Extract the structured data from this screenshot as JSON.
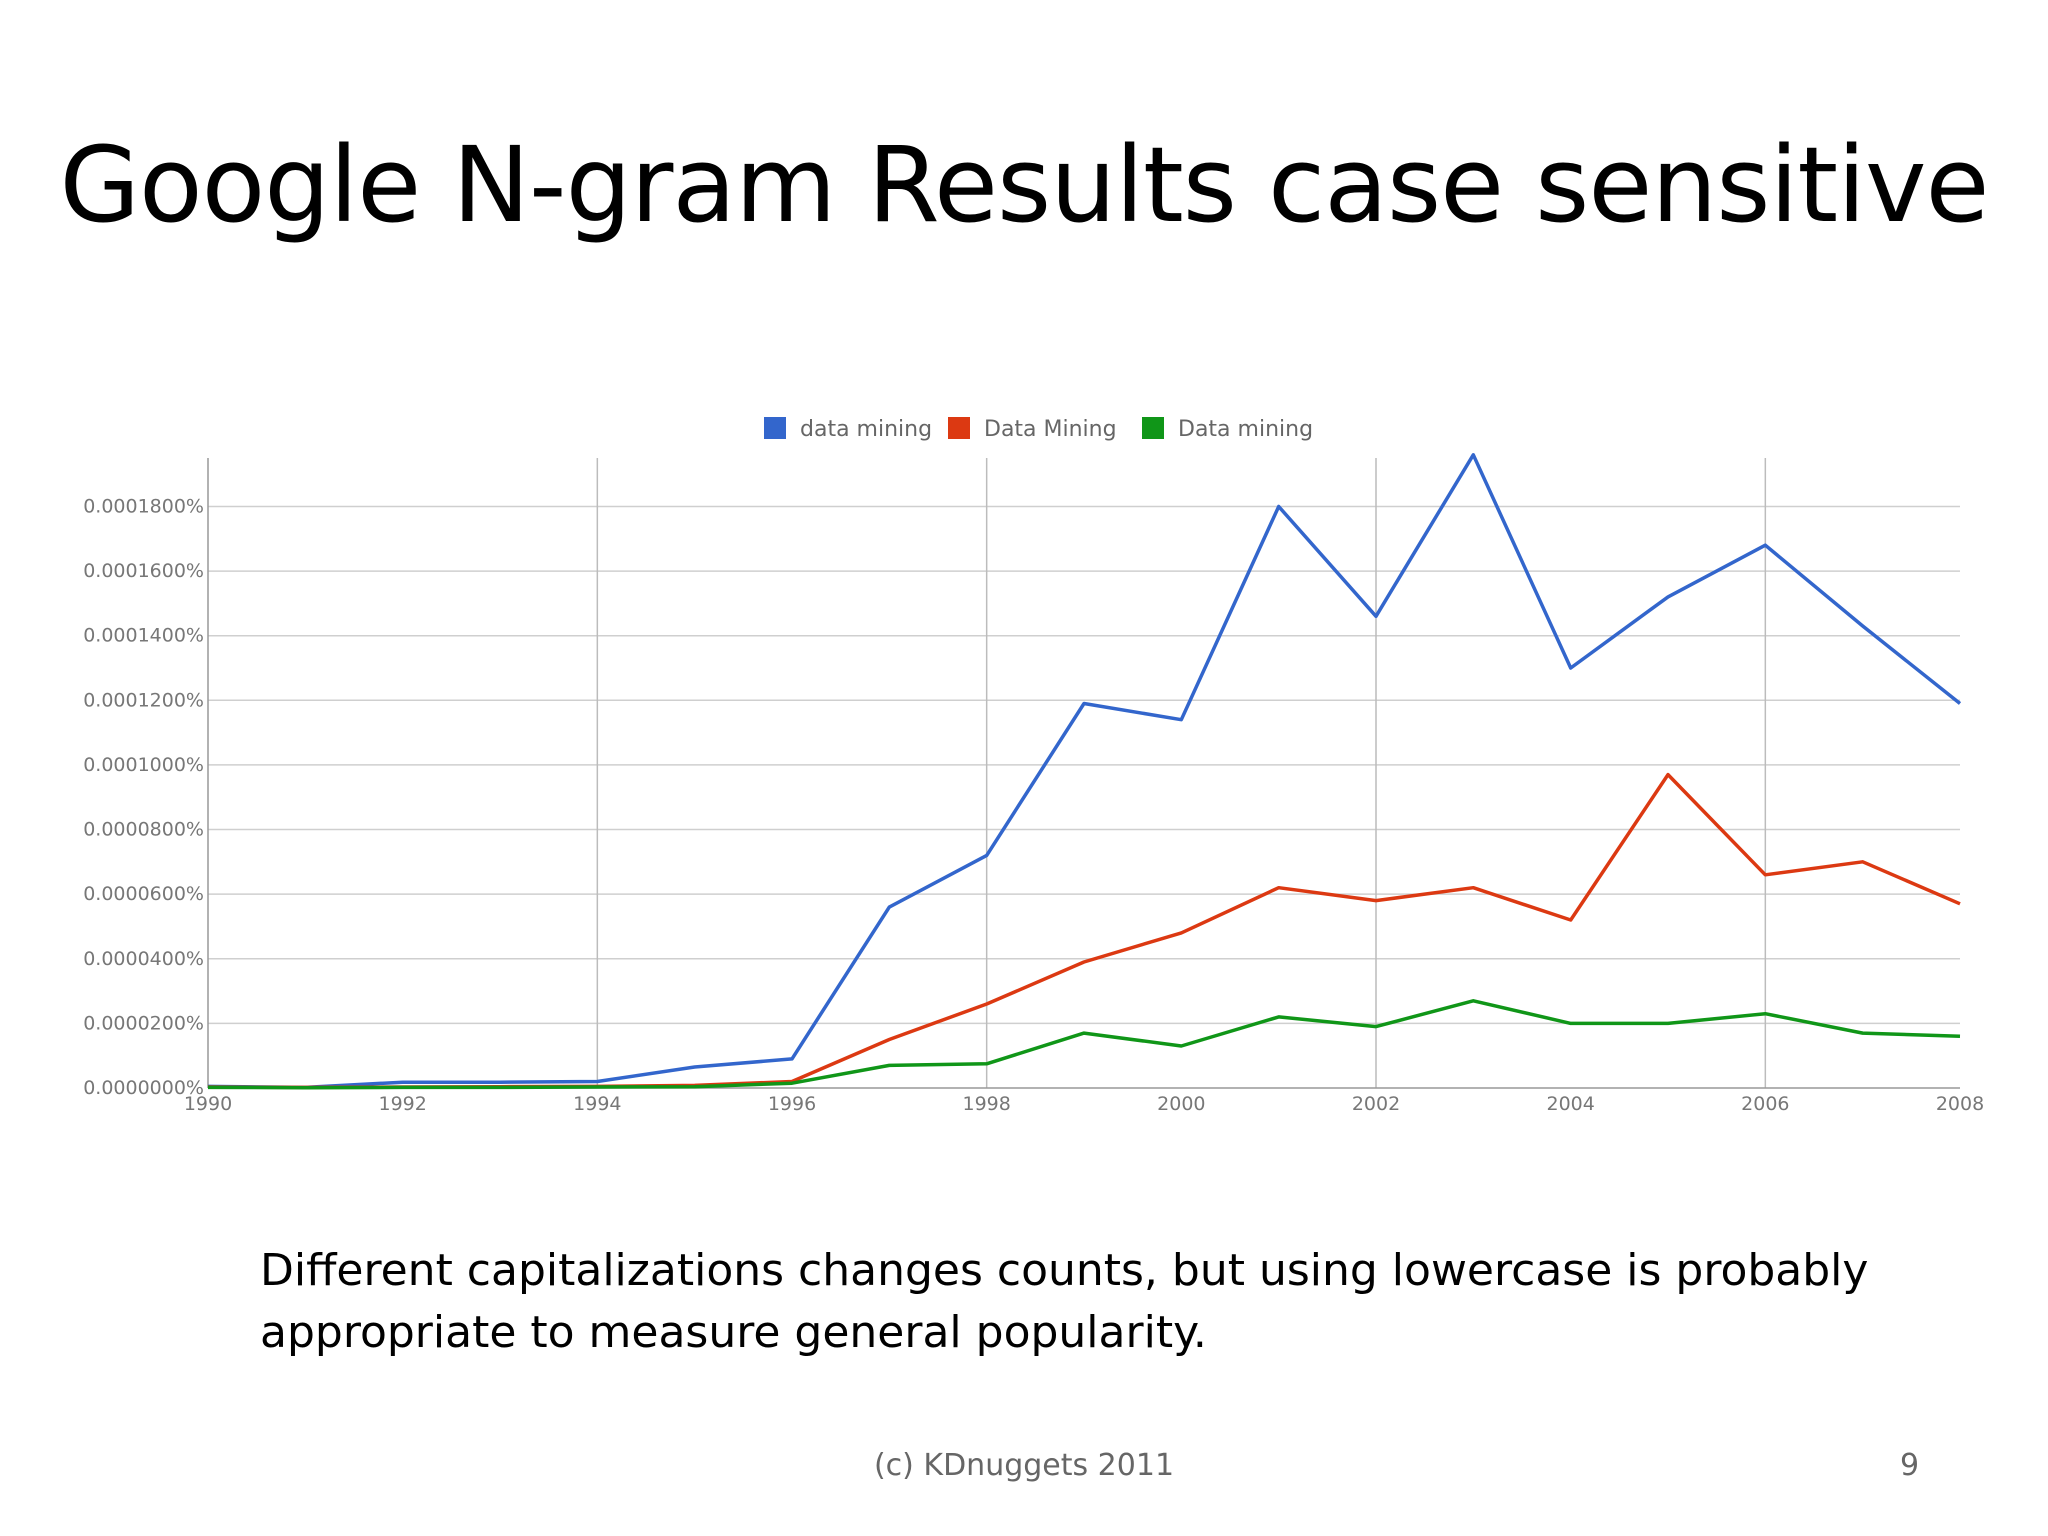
{
  "slide": {
    "title": "Google N-gram Results case sensitive",
    "caption": "Different capitalizations changes counts, but using lowercase is probably appropriate to measure general popularity.",
    "footer": "(c) KDnuggets 2011",
    "page_number": "9"
  },
  "chart_data": {
    "type": "line",
    "title": "",
    "xlabel": "",
    "ylabel": "",
    "xlim": [
      1990,
      2008
    ],
    "ylim": [
      0,
      0.000195
    ],
    "x_ticks": [
      1990,
      1992,
      1994,
      1996,
      1998,
      2000,
      2002,
      2004,
      2006,
      2008
    ],
    "y_ticks": [
      0,
      2e-05,
      4e-05,
      6e-05,
      8e-05,
      0.0001,
      0.00012,
      0.00014,
      0.00016,
      0.00018
    ],
    "x_tick_labels": [
      "1990",
      "1992",
      "1994",
      "1996",
      "1998",
      "2000",
      "2002",
      "2004",
      "2006",
      "2008"
    ],
    "y_tick_labels": [
      "0.0000000%",
      "0.0000200%",
      "0.0000400%",
      "0.0000600%",
      "0.0000800%",
      "0.0001000%",
      "0.0001200%",
      "0.0001400%",
      "0.0001600%",
      "0.0001800%"
    ],
    "grid": true,
    "legend_position": "top",
    "x": [
      1990,
      1991,
      1992,
      1993,
      1994,
      1995,
      1996,
      1997,
      1998,
      1999,
      2000,
      2001,
      2002,
      2003,
      2004,
      2005,
      2006,
      2007,
      2008
    ],
    "series": [
      {
        "name": "data mining",
        "color": "#3366cc",
        "values": [
          5e-07,
          2e-07,
          1.8e-06,
          1.8e-06,
          2e-06,
          6.5e-06,
          9e-06,
          5.6e-05,
          7.2e-05,
          0.000119,
          0.000114,
          0.00018,
          0.000146,
          0.000196,
          0.00013,
          0.000152,
          0.000168,
          0.000143,
          0.000119
        ]
      },
      {
        "name": "Data Mining",
        "color": "#dc3912",
        "values": [
          3e-07,
          2e-07,
          3e-07,
          4e-07,
          5e-07,
          8e-07,
          2e-06,
          1.5e-05,
          2.6e-05,
          3.9e-05,
          4.8e-05,
          6.2e-05,
          5.8e-05,
          6.2e-05,
          5.2e-05,
          9.7e-05,
          6.6e-05,
          7e-05,
          5.7e-05
        ]
      },
      {
        "name": "Data mining",
        "color": "#109618",
        "values": [
          2e-07,
          1e-07,
          2e-07,
          2e-07,
          3e-07,
          4e-07,
          1.5e-06,
          7e-06,
          7.5e-06,
          1.7e-05,
          1.3e-05,
          2.2e-05,
          1.9e-05,
          2.7e-05,
          2e-05,
          2e-05,
          2.3e-05,
          1.7e-05,
          1.6e-05
        ]
      }
    ]
  }
}
